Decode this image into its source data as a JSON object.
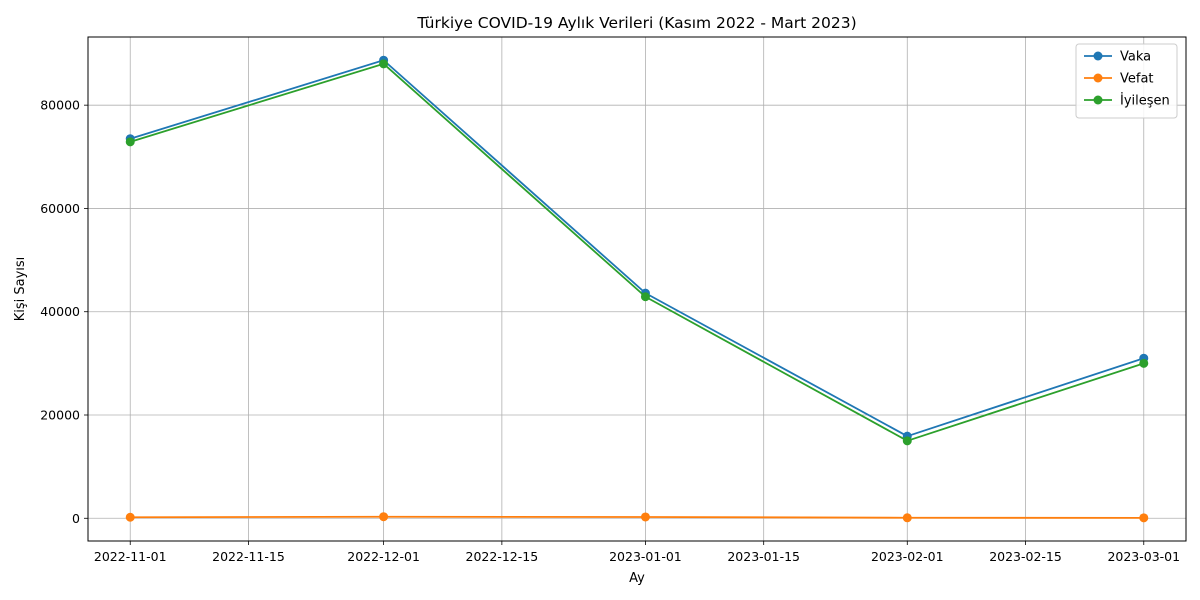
{
  "chart_data": {
    "type": "line",
    "title": "Türkiye COVID-19 Aylık Verileri (Kasım 2022 - Mart 2023)",
    "xlabel": "Ay",
    "ylabel": "Kişi Sayısı",
    "x": [
      "2022-11-01",
      "2022-12-01",
      "2023-01-01",
      "2023-02-01",
      "2023-03-01"
    ],
    "x_ticks": [
      "2022-11-01",
      "2022-11-15",
      "2022-12-01",
      "2022-12-15",
      "2023-01-01",
      "2023-01-15",
      "2023-02-01",
      "2023-02-15",
      "2023-03-01"
    ],
    "y_ticks": [
      0,
      20000,
      40000,
      60000,
      80000
    ],
    "ylim": [
      -4400,
      93200
    ],
    "xlim": [
      "2022-10-27",
      "2023-03-06"
    ],
    "grid": true,
    "legend_position": "top-right",
    "series": [
      {
        "name": "Vaka",
        "color": "#1f77b4",
        "values": [
          73500,
          88700,
          43600,
          15900,
          31000
        ]
      },
      {
        "name": "Vefat",
        "color": "#ff7f0e",
        "values": [
          200,
          300,
          250,
          100,
          80
        ]
      },
      {
        "name": "İyileşen",
        "color": "#2ca02c",
        "values": [
          72900,
          88000,
          42900,
          15000,
          30000
        ]
      }
    ]
  }
}
